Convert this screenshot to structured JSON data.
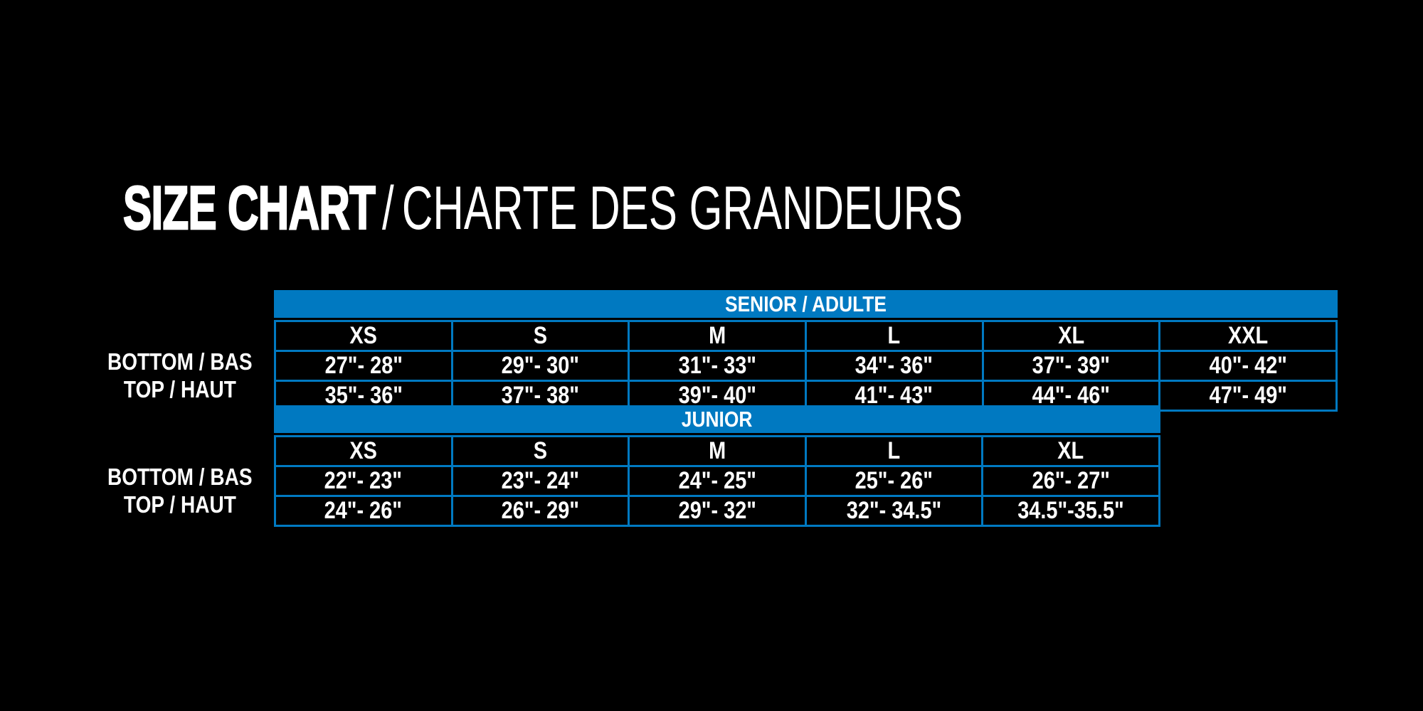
{
  "title": {
    "primary": "SIZE CHART",
    "separator": "/",
    "secondary": "CHARTE DES GRANDEURS"
  },
  "colors": {
    "background": "#000000",
    "accent_blue": "#0079C1",
    "text": "#FFFFFF"
  },
  "chart_data": [
    {
      "type": "table",
      "title": "SENIOR / ADULTE",
      "columns": [
        "XS",
        "S",
        "M",
        "L",
        "XL",
        "XXL"
      ],
      "rows": [
        {
          "label": "BOTTOM / BAS",
          "values": [
            "27\"- 28\"",
            "29\"- 30\"",
            "31\"- 33\"",
            "34\"- 36\"",
            "37\"- 39\"",
            "40\"- 42\""
          ]
        },
        {
          "label": "TOP / HAUT",
          "values": [
            "35\"- 36\"",
            "37\"- 38\"",
            "39\"- 40\"",
            "41\"- 43\"",
            "44\"- 46\"",
            "47\"- 49\""
          ]
        }
      ]
    },
    {
      "type": "table",
      "title": "JUNIOR",
      "columns": [
        "XS",
        "S",
        "M",
        "L",
        "XL"
      ],
      "rows": [
        {
          "label": "BOTTOM / BAS",
          "values": [
            "22\"- 23\"",
            "23\"- 24\"",
            "24\"- 25\"",
            "25\"- 26\"",
            "26\"- 27\""
          ]
        },
        {
          "label": "TOP / HAUT",
          "values": [
            "24\"- 26\"",
            "26\"- 29\"",
            "29\"- 32\"",
            "32\"- 34.5\"",
            "34.5\"-35.5\""
          ]
        }
      ]
    }
  ]
}
